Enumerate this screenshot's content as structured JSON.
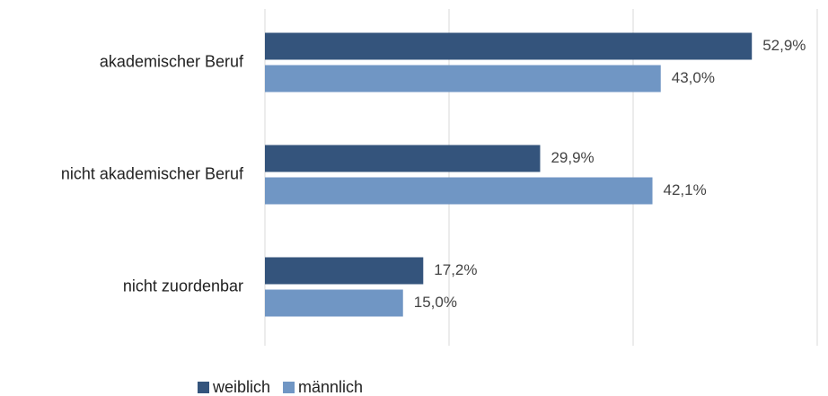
{
  "chart_data": {
    "type": "bar",
    "orientation": "horizontal",
    "categories": [
      "akademischer Beruf",
      "nicht akademischer Beruf",
      "nicht zuordenbar"
    ],
    "series": [
      {
        "name": "weiblich",
        "color": "#34547c",
        "values": [
          52.9,
          29.9,
          17.2
        ],
        "value_labels": [
          "52,9%",
          "29,9%",
          "17,2%"
        ]
      },
      {
        "name": "männlich",
        "color": "#7096c4",
        "values": [
          43.0,
          42.1,
          15.0
        ],
        "value_labels": [
          "43,0%",
          "42,1%",
          "15,0%"
        ]
      }
    ],
    "xlim": [
      0,
      60
    ],
    "xticks": [
      0,
      20,
      40,
      60
    ],
    "grid": true,
    "legend": "bottom"
  }
}
